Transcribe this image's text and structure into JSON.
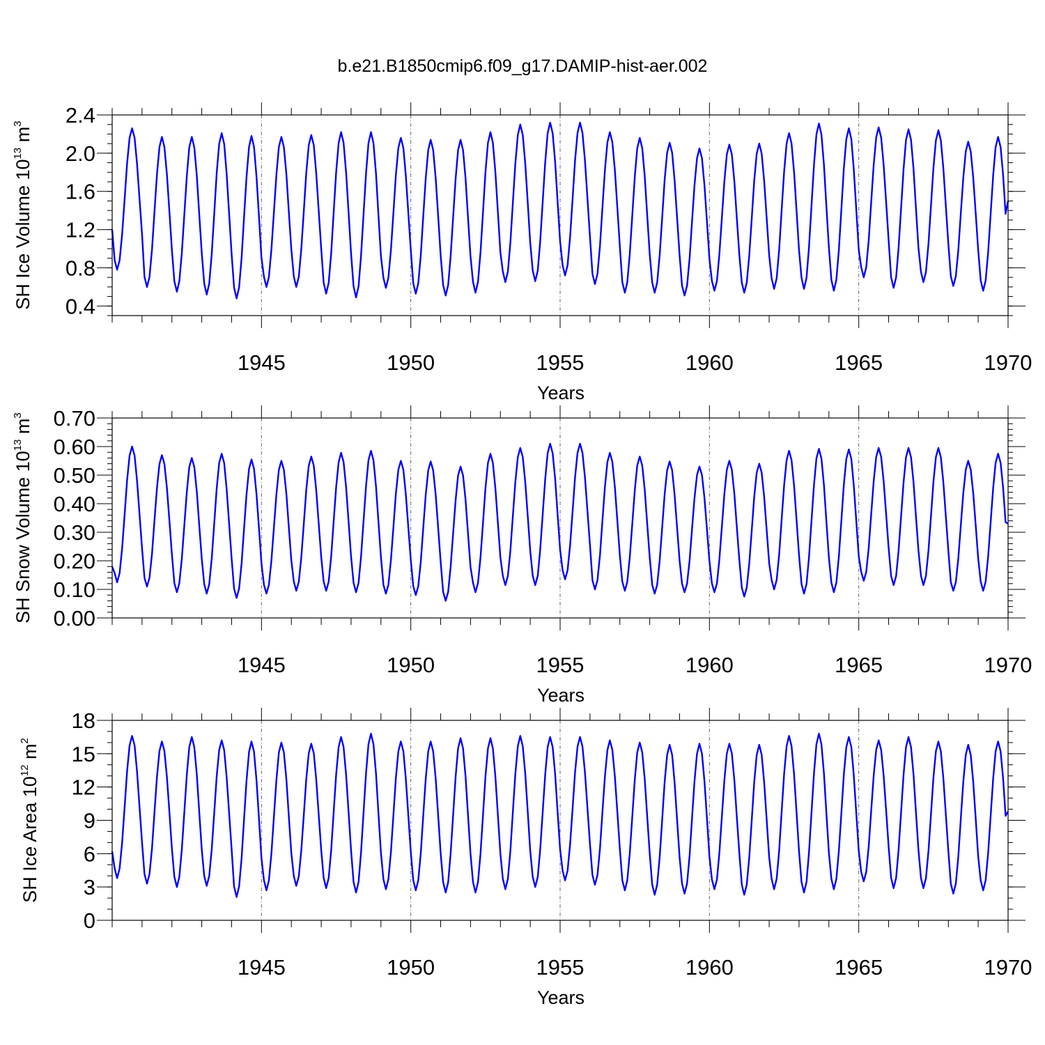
{
  "title": "b.e21.B1850cmip6.f09_g17.DAMIP-hist-aer.002",
  "colors": {
    "series": "#0000ff",
    "axis": "#000000",
    "gridline": "#666666"
  },
  "chart_data": [
    {
      "type": "line",
      "name": "ice-volume",
      "title": "b.e21.B1850cmip6.f09_g17.DAMIP-hist-aer.002",
      "xlabel": "Years",
      "ylabel": {
        "main": "SH Ice Volume 10",
        "exp": "13",
        "unit": " m",
        "unit_exp": "3"
      },
      "xlim": [
        1940.0,
        1970.0
      ],
      "ylim": [
        0.3,
        2.4
      ],
      "x_ticks": [
        "1945",
        "1950",
        "1955",
        "1960",
        "1965",
        "1970"
      ],
      "x_tick_values": [
        1945,
        1950,
        1955,
        1960,
        1965,
        1970
      ],
      "y_ticks": [
        "0.4",
        "0.8",
        "1.2",
        "1.6",
        "2.0",
        "2.4"
      ],
      "y_tick_values": [
        0.4,
        0.8,
        1.2,
        1.6,
        2.0,
        2.4
      ],
      "y_minor_step": 0.1,
      "dashed_x_gridlines": [
        1945,
        1950,
        1955,
        1960,
        1965
      ],
      "series": [
        {
          "name": "SH Ice Volume",
          "start": 1940.0,
          "step_months": 1,
          "start_value": 1.2,
          "end_value": 1.5,
          "annual_min": [
            0.78,
            0.6,
            0.55,
            0.52,
            0.48,
            0.6,
            0.6,
            0.53,
            0.49,
            0.59,
            0.53,
            0.51,
            0.54,
            0.65,
            0.66,
            0.72,
            0.63,
            0.54,
            0.54,
            0.51,
            0.56,
            0.54,
            0.58,
            0.58,
            0.56,
            0.7,
            0.59,
            0.65,
            0.61,
            0.56
          ],
          "annual_max": [
            2.26,
            2.17,
            2.17,
            2.21,
            2.18,
            2.17,
            2.19,
            2.22,
            2.22,
            2.16,
            2.14,
            2.14,
            2.22,
            2.3,
            2.32,
            2.32,
            2.22,
            2.16,
            2.11,
            2.05,
            2.09,
            2.1,
            2.21,
            2.31,
            2.26,
            2.27,
            2.25,
            2.24,
            2.12,
            2.17
          ]
        }
      ]
    },
    {
      "type": "line",
      "name": "snow-volume",
      "xlabel": "Years",
      "ylabel": {
        "main": "SH Snow Volume 10",
        "exp": "13",
        "unit": " m",
        "unit_exp": "3"
      },
      "xlim": [
        1940.0,
        1970.0
      ],
      "ylim": [
        0.0,
        0.7
      ],
      "x_ticks": [
        "1945",
        "1950",
        "1955",
        "1960",
        "1965",
        "1970"
      ],
      "x_tick_values": [
        1945,
        1950,
        1955,
        1960,
        1965,
        1970
      ],
      "y_ticks": [
        "0.00",
        "0.10",
        "0.20",
        "0.30",
        "0.40",
        "0.50",
        "0.60",
        "0.70"
      ],
      "y_tick_values": [
        0.0,
        0.1,
        0.2,
        0.3,
        0.4,
        0.5,
        0.6,
        0.7
      ],
      "y_minor_step": 0.02,
      "dashed_x_gridlines": [
        1945,
        1950,
        1955,
        1960,
        1965
      ],
      "series": [
        {
          "name": "SH Snow Volume",
          "start": 1940.0,
          "step_months": 1,
          "start_value": 0.18,
          "end_value": 0.33,
          "annual_min": [
            0.125,
            0.11,
            0.09,
            0.085,
            0.07,
            0.085,
            0.095,
            0.095,
            0.09,
            0.085,
            0.08,
            0.06,
            0.09,
            0.115,
            0.115,
            0.135,
            0.1,
            0.095,
            0.085,
            0.09,
            0.09,
            0.075,
            0.1,
            0.085,
            0.09,
            0.13,
            0.115,
            0.115,
            0.095,
            0.095
          ],
          "annual_max": [
            0.6,
            0.57,
            0.56,
            0.575,
            0.555,
            0.55,
            0.565,
            0.578,
            0.585,
            0.55,
            0.548,
            0.53,
            0.575,
            0.595,
            0.61,
            0.61,
            0.578,
            0.565,
            0.548,
            0.53,
            0.55,
            0.54,
            0.585,
            0.592,
            0.59,
            0.595,
            0.595,
            0.595,
            0.55,
            0.575
          ]
        }
      ]
    },
    {
      "type": "line",
      "name": "ice-area",
      "xlabel": "Years",
      "ylabel": {
        "main": "SH Ice Area 10",
        "exp": "12",
        "unit": " m",
        "unit_exp": "2"
      },
      "xlim": [
        1940.0,
        1970.0
      ],
      "ylim": [
        0,
        18
      ],
      "x_ticks": [
        "1945",
        "1950",
        "1955",
        "1960",
        "1965",
        "1970"
      ],
      "x_tick_values": [
        1945,
        1950,
        1955,
        1960,
        1965,
        1970
      ],
      "y_ticks": [
        "0",
        "3",
        "6",
        "9",
        "12",
        "15",
        "18"
      ],
      "y_tick_values": [
        0,
        3,
        6,
        9,
        12,
        15,
        18
      ],
      "y_minor_step": 1,
      "dashed_x_gridlines": [
        1945,
        1950,
        1955,
        1960,
        1965
      ],
      "series": [
        {
          "name": "SH Ice Area",
          "start": 1940.0,
          "step_months": 1,
          "start_value": 6.2,
          "end_value": 9.8,
          "annual_min": [
            3.8,
            3.3,
            3.0,
            3.1,
            2.1,
            2.7,
            3.1,
            2.9,
            2.5,
            2.8,
            2.7,
            2.5,
            2.5,
            2.8,
            3.0,
            3.6,
            3.2,
            2.7,
            2.3,
            2.4,
            2.8,
            2.3,
            2.8,
            2.5,
            2.8,
            3.5,
            2.9,
            2.9,
            2.4,
            2.7
          ],
          "annual_max": [
            16.6,
            16.1,
            16.5,
            16.2,
            16.1,
            16.0,
            15.9,
            16.5,
            16.8,
            16.1,
            16.1,
            16.4,
            16.4,
            16.6,
            16.5,
            16.5,
            16.2,
            16.0,
            15.8,
            15.9,
            15.9,
            15.8,
            16.6,
            16.8,
            16.5,
            16.2,
            16.5,
            16.1,
            15.8,
            16.1
          ]
        }
      ]
    }
  ]
}
